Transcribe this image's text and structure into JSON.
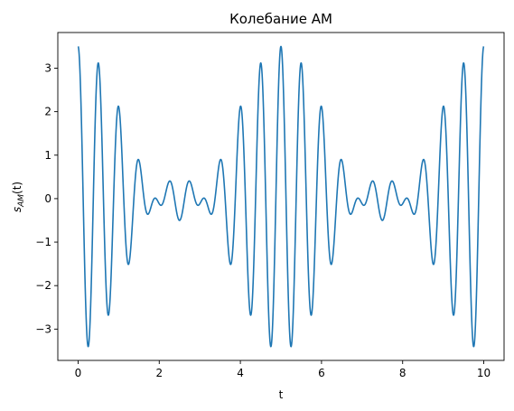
{
  "chart_data": {
    "type": "line",
    "title": "Колебание АМ",
    "xlabel": "t",
    "ylabel_base": "s",
    "ylabel_sub": "AM",
    "ylabel_suffix": "(t)",
    "xlim": [
      -0.5,
      10.5
    ],
    "ylim": [
      -3.72,
      3.82
    ],
    "x_ticks": [
      0,
      2,
      4,
      6,
      8,
      10
    ],
    "x_tick_labels": [
      "0",
      "2",
      "4",
      "6",
      "8",
      "10"
    ],
    "y_ticks": [
      -3,
      -2,
      -1,
      0,
      1,
      2,
      3
    ],
    "y_tick_labels": [
      "−3",
      "−2",
      "−1",
      "0",
      "1",
      "2",
      "3"
    ],
    "grid": false,
    "series": [
      {
        "color": "#1f77b4",
        "x_range": [
          0,
          10
        ],
        "samples": 2001,
        "formula": "cos(2π·2t)·(1.5 + 2·cos(2π·0.2t))",
        "carrier_freq": 2,
        "modulation_freq": 0.2,
        "offset": 1.5,
        "modulation_amplitude": 2
      }
    ]
  }
}
